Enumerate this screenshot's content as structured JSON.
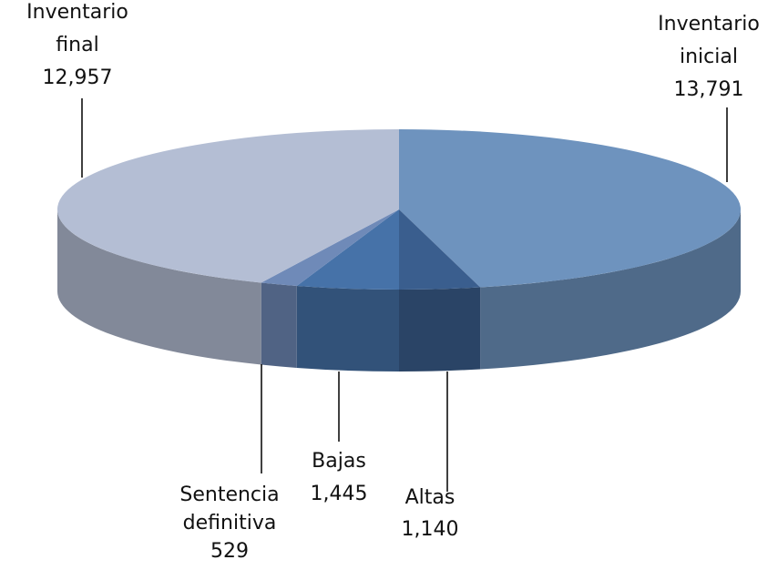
{
  "chart_data": {
    "type": "pie3d",
    "categories": [
      "Inventario inicial",
      "Altas",
      "Bajas",
      "Sentencia definitiva",
      "Inventario final"
    ],
    "values": [
      13791,
      1140,
      1445,
      529,
      12957
    ],
    "value_labels": [
      "13,791",
      "1,140",
      "1,445",
      "529",
      "12,957"
    ],
    "colors": [
      "#6e93be",
      "#3a5e8e",
      "#4672a8",
      "#6f8ab8",
      "#b4bed4"
    ]
  }
}
